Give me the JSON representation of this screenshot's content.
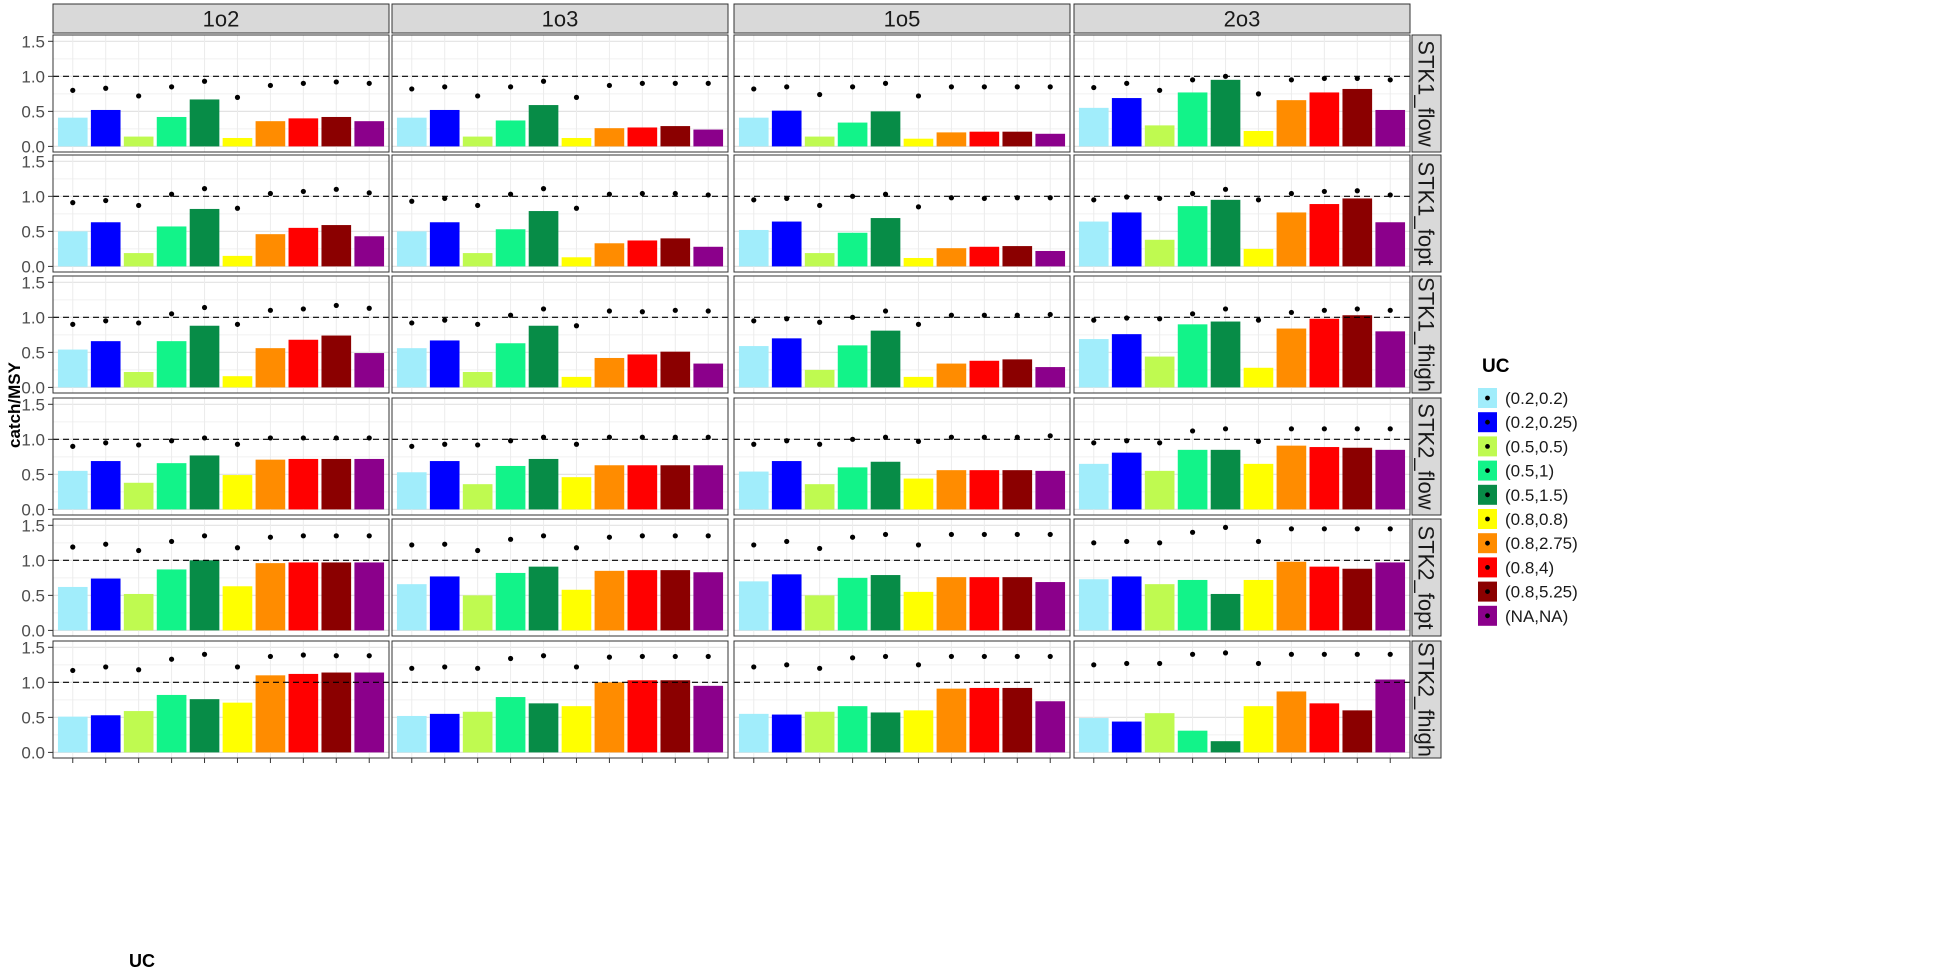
{
  "chart_data": {
    "type": "bar",
    "xlabel": "UC",
    "ylabel": "catch/MSY",
    "ylim": [
      0,
      1.5
    ],
    "y_ticks": [
      "0.0",
      "0.5",
      "1.0",
      "1.5"
    ],
    "reference_line": 1.0,
    "grid": true,
    "legend_title": "UC",
    "legend_position": "right",
    "categories": [
      "(0.2,0.2)",
      "(0.2,0.25)",
      "(0.5,0.5)",
      "(0.5,1)",
      "(0.5,1.5)",
      "(0.8,0.8)",
      "(0.8,2.75)",
      "(0.8,4)",
      "(0.8,5.25)",
      "(NA,NA)"
    ],
    "colors": [
      "#a1edfb",
      "#0000ff",
      "#bffa50",
      "#12f389",
      "#078c47",
      "#ffff00",
      "#ff8c00",
      "#ff0000",
      "#8b0000",
      "#8b008b"
    ],
    "col_facets": [
      "1o2",
      "1o3",
      "1o5",
      "2o3"
    ],
    "row_facets": [
      "STK1_flow",
      "STK1_fopt",
      "STK1_fhigh",
      "STK2_flow",
      "STK2_fopt",
      "STK2_fhigh"
    ],
    "panels": [
      [
        {
          "bars": [
            0.41,
            0.52,
            0.14,
            0.42,
            0.67,
            0.12,
            0.36,
            0.4,
            0.42,
            0.36
          ],
          "points": [
            0.8,
            0.83,
            0.72,
            0.85,
            0.93,
            0.7,
            0.87,
            0.9,
            0.92,
            0.9
          ]
        },
        {
          "bars": [
            0.41,
            0.52,
            0.14,
            0.37,
            0.59,
            0.12,
            0.26,
            0.27,
            0.29,
            0.24
          ],
          "points": [
            0.82,
            0.85,
            0.72,
            0.85,
            0.93,
            0.7,
            0.87,
            0.9,
            0.9,
            0.9
          ]
        },
        {
          "bars": [
            0.41,
            0.51,
            0.14,
            0.34,
            0.5,
            0.11,
            0.2,
            0.21,
            0.21,
            0.18
          ],
          "points": [
            0.82,
            0.85,
            0.74,
            0.85,
            0.9,
            0.72,
            0.85,
            0.85,
            0.85,
            0.85
          ]
        },
        {
          "bars": [
            0.55,
            0.69,
            0.3,
            0.77,
            0.95,
            0.22,
            0.66,
            0.77,
            0.82,
            0.52
          ],
          "points": [
            0.84,
            0.9,
            0.8,
            0.95,
            1.0,
            0.75,
            0.95,
            0.97,
            0.97,
            0.95
          ]
        }
      ],
      [
        {
          "bars": [
            0.5,
            0.63,
            0.19,
            0.57,
            0.82,
            0.15,
            0.46,
            0.55,
            0.59,
            0.43
          ],
          "points": [
            0.91,
            0.94,
            0.87,
            1.03,
            1.11,
            0.83,
            1.04,
            1.07,
            1.1,
            1.05
          ]
        },
        {
          "bars": [
            0.5,
            0.63,
            0.19,
            0.53,
            0.79,
            0.13,
            0.33,
            0.37,
            0.4,
            0.28
          ],
          "points": [
            0.93,
            0.97,
            0.87,
            1.03,
            1.11,
            0.83,
            1.03,
            1.04,
            1.04,
            1.02
          ]
        },
        {
          "bars": [
            0.52,
            0.64,
            0.19,
            0.48,
            0.69,
            0.12,
            0.26,
            0.28,
            0.29,
            0.22
          ],
          "points": [
            0.95,
            0.97,
            0.87,
            1.0,
            1.03,
            0.85,
            0.98,
            0.97,
            0.98,
            0.98
          ]
        },
        {
          "bars": [
            0.64,
            0.77,
            0.38,
            0.86,
            0.95,
            0.25,
            0.77,
            0.89,
            0.97,
            0.63
          ],
          "points": [
            0.95,
            0.99,
            0.97,
            1.04,
            1.1,
            0.95,
            1.04,
            1.07,
            1.08,
            1.02
          ]
        }
      ],
      [
        {
          "bars": [
            0.54,
            0.66,
            0.22,
            0.66,
            0.88,
            0.16,
            0.56,
            0.68,
            0.74,
            0.49
          ],
          "points": [
            0.9,
            0.95,
            0.92,
            1.05,
            1.14,
            0.9,
            1.1,
            1.12,
            1.17,
            1.13
          ]
        },
        {
          "bars": [
            0.56,
            0.67,
            0.22,
            0.63,
            0.88,
            0.15,
            0.42,
            0.47,
            0.51,
            0.34
          ],
          "points": [
            0.92,
            0.96,
            0.9,
            1.03,
            1.12,
            0.88,
            1.09,
            1.08,
            1.1,
            1.09
          ]
        },
        {
          "bars": [
            0.59,
            0.7,
            0.25,
            0.6,
            0.81,
            0.15,
            0.34,
            0.38,
            0.4,
            0.29
          ],
          "points": [
            0.95,
            0.98,
            0.93,
            1.0,
            1.09,
            0.9,
            1.03,
            1.03,
            1.03,
            1.04
          ]
        },
        {
          "bars": [
            0.69,
            0.76,
            0.44,
            0.9,
            0.94,
            0.28,
            0.84,
            0.98,
            1.03,
            0.8
          ],
          "points": [
            0.96,
            0.99,
            0.98,
            1.05,
            1.12,
            0.96,
            1.07,
            1.1,
            1.12,
            1.1
          ]
        }
      ],
      [
        {
          "bars": [
            0.55,
            0.69,
            0.38,
            0.66,
            0.77,
            0.49,
            0.71,
            0.72,
            0.72,
            0.72
          ],
          "points": [
            0.9,
            0.95,
            0.92,
            0.98,
            1.02,
            0.93,
            1.02,
            1.02,
            1.02,
            1.02
          ]
        },
        {
          "bars": [
            0.53,
            0.69,
            0.36,
            0.62,
            0.72,
            0.46,
            0.63,
            0.63,
            0.63,
            0.63
          ],
          "points": [
            0.9,
            0.93,
            0.92,
            0.98,
            1.03,
            0.93,
            1.03,
            1.03,
            1.03,
            1.03
          ]
        },
        {
          "bars": [
            0.54,
            0.69,
            0.36,
            0.6,
            0.68,
            0.44,
            0.56,
            0.56,
            0.56,
            0.55
          ],
          "points": [
            0.93,
            0.98,
            0.93,
            1.0,
            1.03,
            0.97,
            1.03,
            1.03,
            1.03,
            1.05
          ]
        },
        {
          "bars": [
            0.65,
            0.81,
            0.55,
            0.85,
            0.85,
            0.65,
            0.91,
            0.89,
            0.88,
            0.85
          ],
          "points": [
            0.95,
            0.98,
            0.95,
            1.12,
            1.15,
            0.97,
            1.15,
            1.15,
            1.15,
            1.15
          ]
        }
      ],
      [
        {
          "bars": [
            0.62,
            0.74,
            0.52,
            0.87,
            1.0,
            0.63,
            0.96,
            0.97,
            0.97,
            0.97
          ],
          "points": [
            1.19,
            1.23,
            1.14,
            1.27,
            1.35,
            1.18,
            1.33,
            1.35,
            1.35,
            1.35
          ]
        },
        {
          "bars": [
            0.66,
            0.77,
            0.5,
            0.82,
            0.91,
            0.58,
            0.85,
            0.86,
            0.86,
            0.83
          ],
          "points": [
            1.22,
            1.23,
            1.14,
            1.3,
            1.35,
            1.18,
            1.33,
            1.35,
            1.35,
            1.35
          ]
        },
        {
          "bars": [
            0.7,
            0.8,
            0.5,
            0.75,
            0.79,
            0.55,
            0.76,
            0.76,
            0.76,
            0.69
          ],
          "points": [
            1.22,
            1.27,
            1.17,
            1.33,
            1.37,
            1.22,
            1.37,
            1.37,
            1.37,
            1.37
          ]
        },
        {
          "bars": [
            0.73,
            0.77,
            0.66,
            0.72,
            0.52,
            0.72,
            0.98,
            0.91,
            0.88,
            0.97
          ],
          "points": [
            1.25,
            1.27,
            1.25,
            1.4,
            1.47,
            1.27,
            1.45,
            1.45,
            1.45,
            1.45
          ]
        }
      ],
      [
        {
          "bars": [
            0.51,
            0.53,
            0.59,
            0.82,
            0.76,
            0.71,
            1.1,
            1.12,
            1.14,
            1.14
          ],
          "points": [
            1.17,
            1.22,
            1.18,
            1.33,
            1.4,
            1.22,
            1.37,
            1.39,
            1.38,
            1.38
          ]
        },
        {
          "bars": [
            0.52,
            0.55,
            0.58,
            0.79,
            0.7,
            0.66,
            1.0,
            1.03,
            1.03,
            0.95
          ],
          "points": [
            1.2,
            1.22,
            1.2,
            1.34,
            1.38,
            1.22,
            1.36,
            1.37,
            1.37,
            1.37
          ]
        },
        {
          "bars": [
            0.55,
            0.54,
            0.58,
            0.66,
            0.57,
            0.6,
            0.91,
            0.92,
            0.92,
            0.73
          ],
          "points": [
            1.22,
            1.25,
            1.2,
            1.35,
            1.37,
            1.25,
            1.37,
            1.37,
            1.37,
            1.37
          ]
        },
        {
          "bars": [
            0.49,
            0.44,
            0.56,
            0.31,
            0.16,
            0.66,
            0.87,
            0.7,
            0.6,
            1.04
          ],
          "points": [
            1.25,
            1.27,
            1.27,
            1.4,
            1.42,
            1.27,
            1.4,
            1.4,
            1.4,
            1.4
          ]
        }
      ]
    ]
  }
}
